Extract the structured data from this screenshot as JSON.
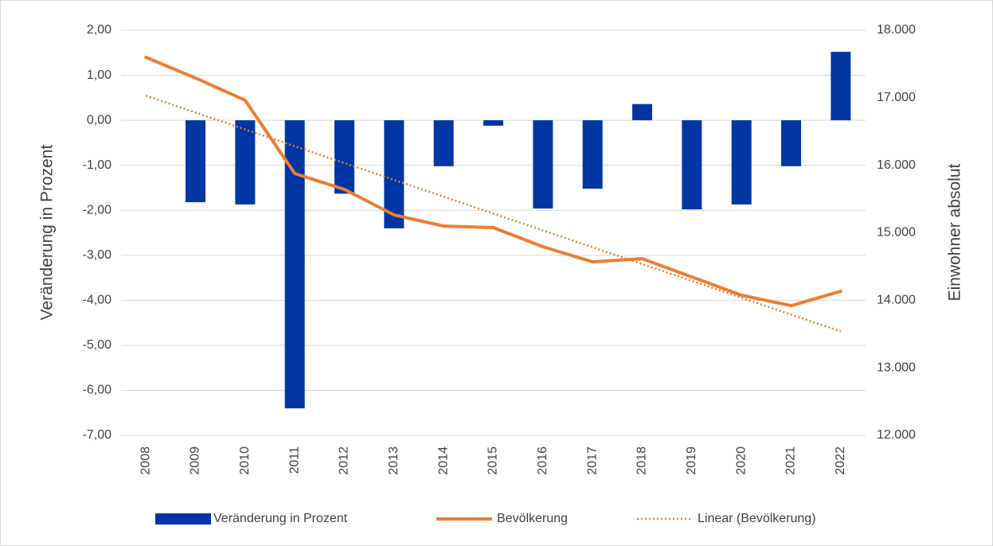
{
  "chart_data": {
    "type": "bar-line",
    "categories": [
      "2008",
      "2009",
      "2010",
      "2011",
      "2012",
      "2013",
      "2014",
      "2015",
      "2016",
      "2017",
      "2018",
      "2019",
      "2020",
      "2021",
      "2022"
    ],
    "ylabel": "Veränderung in Prozent",
    "y2label": "Einwohner absolut",
    "ylim": [
      -7,
      2
    ],
    "yticks": [
      {
        "value": 2,
        "label": "2,00"
      },
      {
        "value": 1,
        "label": "1,00"
      },
      {
        "value": 0,
        "label": "0,00"
      },
      {
        "value": -1,
        "label": "-1,00"
      },
      {
        "value": -2,
        "label": "-2,00"
      },
      {
        "value": -3,
        "label": "-3,00"
      },
      {
        "value": -4,
        "label": "-4,00"
      },
      {
        "value": -5,
        "label": "-5,00"
      },
      {
        "value": -6,
        "label": "-6,00"
      },
      {
        "value": -7,
        "label": "-7,00"
      }
    ],
    "y2lim": [
      12000,
      18000
    ],
    "y2ticks": [
      {
        "value": 18000,
        "label": "18.000"
      },
      {
        "value": 17000,
        "label": "17.000"
      },
      {
        "value": 16000,
        "label": "16.000"
      },
      {
        "value": 15000,
        "label": "15.000"
      },
      {
        "value": 14000,
        "label": "14.000"
      },
      {
        "value": 13000,
        "label": "13.000"
      },
      {
        "value": 12000,
        "label": "12.000"
      }
    ],
    "grid": true,
    "legend": "bottom",
    "series": [
      {
        "name": "Veränderung in Prozent",
        "type": "bar",
        "color": "#0036a3",
        "values": [
          null,
          -1.82,
          -1.87,
          -6.4,
          -1.63,
          -2.4,
          -1.02,
          -0.12,
          -1.96,
          -1.52,
          0.36,
          -1.98,
          -1.87,
          -1.02,
          1.52
        ]
      },
      {
        "name": "Bevölkerung",
        "type": "line",
        "axis": "y2",
        "color": "#ed7d31",
        "values": [
          17599,
          17293,
          16963,
          15878,
          15643,
          15265,
          15100,
          15077,
          14794,
          14570,
          14617,
          14346,
          14075,
          13921,
          14134
        ]
      }
    ],
    "trendline": {
      "name": "Linear (Bevölkerung)",
      "series": 1,
      "color": "#ed7d31"
    }
  }
}
